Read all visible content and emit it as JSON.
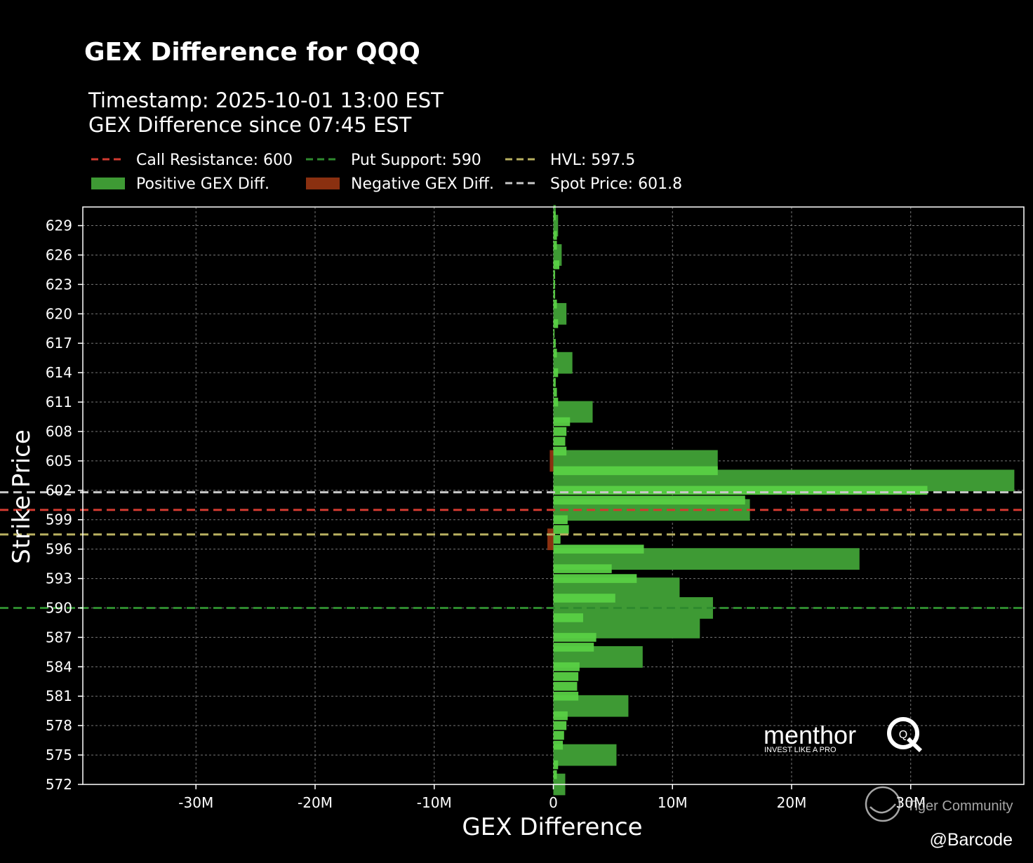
{
  "chart_data": {
    "type": "bar",
    "orientation": "horizontal",
    "title": "GEX Difference for QQQ",
    "subtitle_lines": [
      "Timestamp: 2025-10-01 13:00 EST",
      "GEX Difference since 07:45 EST"
    ],
    "xlabel": "GEX Difference",
    "ylabel": "Strike Price",
    "xlim": [
      -39500000,
      39500000
    ],
    "ylim": [
      572,
      630.9
    ],
    "x_ticks": [
      {
        "value": -30000000,
        "label": "-30M"
      },
      {
        "value": -20000000,
        "label": "-20M"
      },
      {
        "value": -10000000,
        "label": "-10M"
      },
      {
        "value": 0,
        "label": "0"
      },
      {
        "value": 10000000,
        "label": "10M"
      },
      {
        "value": 20000000,
        "label": "20M"
      },
      {
        "value": 30000000,
        "label": "30M"
      }
    ],
    "y_ticks": [
      629,
      626,
      623,
      620,
      617,
      614,
      611,
      608,
      605,
      602,
      599,
      596,
      593,
      590,
      587,
      584,
      581,
      578,
      575,
      572
    ],
    "grid": true,
    "legend_position": "top-left",
    "legend": [
      {
        "label": "Call Resistance: 600",
        "kind": "dashed-line",
        "color": "#d03a30"
      },
      {
        "label": "Put Support: 590",
        "kind": "dashed-line",
        "color": "#2e8a2e"
      },
      {
        "label": "HVL: 597.5",
        "kind": "dashed-line",
        "color": "#b8b060"
      },
      {
        "label": "Positive GEX Diff.",
        "kind": "patch",
        "color": "#3e9a34"
      },
      {
        "label": "Negative GEX Diff.",
        "kind": "patch",
        "color": "#8a3010"
      },
      {
        "label": "Spot Price: 601.8",
        "kind": "dashed-line",
        "color": "#c8c8c8"
      }
    ],
    "reference_lines": [
      {
        "name": "Call Resistance",
        "y": 600,
        "color": "#d03a30"
      },
      {
        "name": "Put Support",
        "y": 590,
        "color": "#2e8a2e"
      },
      {
        "name": "HVL",
        "y": 597.5,
        "color": "#b8b060"
      },
      {
        "name": "Spot Price",
        "y": 601.8,
        "color": "#c8c8c8"
      }
    ],
    "colors": {
      "positive_dark": "#3e9a34",
      "positive_light": "#58d044",
      "negative": "#8a3010",
      "axes": "#ffffff",
      "grid": "#777777"
    },
    "series": [
      {
        "name": "Positive GEX Diff.",
        "bar_height": 2.2,
        "color": "#3e9a34",
        "points": [
          {
            "y": 630,
            "x": 200000
          },
          {
            "y": 629,
            "x": 400000
          },
          {
            "y": 626,
            "x": 700000
          },
          {
            "y": 620,
            "x": 1100000
          },
          {
            "y": 615,
            "x": 1600000
          },
          {
            "y": 610,
            "x": 3300000
          },
          {
            "y": 605,
            "x": 13800000
          },
          {
            "y": 603,
            "x": 38700000
          },
          {
            "y": 600,
            "x": 16500000
          },
          {
            "y": 595,
            "x": 25700000
          },
          {
            "y": 592,
            "x": 10600000
          },
          {
            "y": 590,
            "x": 13400000
          },
          {
            "y": 588,
            "x": 12300000
          },
          {
            "y": 585,
            "x": 7500000
          },
          {
            "y": 580,
            "x": 6300000
          },
          {
            "y": 575,
            "x": 5300000
          },
          {
            "y": 572,
            "x": 1000000
          }
        ]
      },
      {
        "name": "Positive GEX Diff. (fine)",
        "bar_height": 0.9,
        "color": "#58d044",
        "points": [
          {
            "y": 630,
            "x": 200000
          },
          {
            "y": 628,
            "x": 300000
          },
          {
            "y": 627,
            "x": 300000
          },
          {
            "y": 625,
            "x": 500000
          },
          {
            "y": 624,
            "x": 150000
          },
          {
            "y": 623,
            "x": 150000
          },
          {
            "y": 622,
            "x": 150000
          },
          {
            "y": 621,
            "x": 300000
          },
          {
            "y": 619,
            "x": 400000
          },
          {
            "y": 618,
            "x": 100000
          },
          {
            "y": 617,
            "x": 200000
          },
          {
            "y": 616,
            "x": 300000
          },
          {
            "y": 614,
            "x": 400000
          },
          {
            "y": 613,
            "x": 200000
          },
          {
            "y": 612,
            "x": 300000
          },
          {
            "y": 611,
            "x": 400000
          },
          {
            "y": 609,
            "x": 1400000
          },
          {
            "y": 608,
            "x": 1100000
          },
          {
            "y": 607,
            "x": 1000000
          },
          {
            "y": 606,
            "x": 1100000
          },
          {
            "y": 604,
            "x": 13800000
          },
          {
            "y": 602,
            "x": 31400000
          },
          {
            "y": 601,
            "x": 16100000
          },
          {
            "y": 599,
            "x": 1200000
          },
          {
            "y": 598,
            "x": 1300000
          },
          {
            "y": 597,
            "x": 600000
          },
          {
            "y": 596,
            "x": 7600000
          },
          {
            "y": 594,
            "x": 4900000
          },
          {
            "y": 593,
            "x": 7000000
          },
          {
            "y": 591,
            "x": 5200000
          },
          {
            "y": 589,
            "x": 2500000
          },
          {
            "y": 587,
            "x": 3600000
          },
          {
            "y": 586,
            "x": 3400000
          },
          {
            "y": 584,
            "x": 2200000
          },
          {
            "y": 583,
            "x": 2100000
          },
          {
            "y": 582,
            "x": 2000000
          },
          {
            "y": 581,
            "x": 2100000
          },
          {
            "y": 579,
            "x": 1200000
          },
          {
            "y": 578,
            "x": 1100000
          },
          {
            "y": 577,
            "x": 900000
          },
          {
            "y": 576,
            "x": 800000
          },
          {
            "y": 574,
            "x": 400000
          },
          {
            "y": 573,
            "x": 300000
          }
        ]
      },
      {
        "name": "Negative GEX Diff.",
        "bar_height": 2.2,
        "color": "#8a3010",
        "points": [
          {
            "y": 605,
            "x": -300000
          },
          {
            "y": 597,
            "x": -500000
          }
        ]
      }
    ]
  },
  "watermark": {
    "brand": "menthor",
    "brand_mark": "Q",
    "tagline": "INVEST LIKE A PRO",
    "community": "Tiger Community",
    "handle": "@Barcode"
  }
}
